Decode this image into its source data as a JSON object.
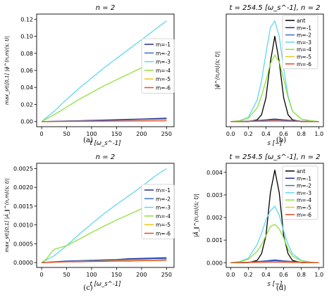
{
  "panels": [
    {
      "id": "a",
      "caption": "(a)",
      "title": "n = 2",
      "xlabel": "t [ω_s^-1]",
      "ylabel": "max_s∈[0,1] |φ̃^(n,m)(s; t)|",
      "chart_data": {
        "type": "line",
        "title": "n = 2",
        "xlabel": "t [ω_s^-1]",
        "ylabel": "max_s∈[0,1] |φ̃^(n,m)(s; t)|",
        "xlim": [
          -10,
          265
        ],
        "ylim": [
          -0.006,
          0.126
        ],
        "xticks": [
          0,
          50,
          100,
          150,
          200,
          250
        ],
        "xtick_labels": [
          "0",
          "50",
          "100",
          "150",
          "200",
          "250"
        ],
        "yticks": [
          0.0,
          0.02,
          0.04,
          0.06,
          0.08,
          0.1,
          0.12
        ],
        "ytick_labels": [
          "0.00",
          "0.02",
          "0.04",
          "0.06",
          "0.08",
          "0.10",
          "0.12"
        ],
        "grid": false,
        "legend": "right",
        "series": [
          {
            "name": "m=-1",
            "color": "#1f2d8c",
            "x": [
              0,
              25,
              50,
              75,
              100,
              125,
              150,
              175,
              200,
              225,
              250
            ],
            "y": [
              0,
              0.0003,
              0.0007,
              0.001,
              0.0014,
              0.0018,
              0.0022,
              0.0026,
              0.003,
              0.0035,
              0.004
            ]
          },
          {
            "name": "m=-2",
            "color": "#3a6fd6",
            "x": [
              0,
              25,
              50,
              75,
              100,
              125,
              150,
              175,
              200,
              225,
              250
            ],
            "y": [
              0,
              0.0002,
              0.0005,
              0.0008,
              0.001,
              0.0013,
              0.0016,
              0.002,
              0.0024,
              0.0027,
              0.003
            ]
          },
          {
            "name": "m=-3",
            "color": "#5fd7ef",
            "x": [
              0,
              25,
              50,
              75,
              100,
              125,
              150,
              175,
              200,
              225,
              250
            ],
            "y": [
              0,
              0.012,
              0.026,
              0.039,
              0.051,
              0.063,
              0.074,
              0.085,
              0.096,
              0.107,
              0.118
            ]
          },
          {
            "name": "m=-4",
            "color": "#8fe03c",
            "x": [
              0,
              25,
              50,
              75,
              100,
              125,
              150,
              175,
              200,
              225,
              250
            ],
            "y": [
              0,
              0.008,
              0.017,
              0.026,
              0.034,
              0.042,
              0.049,
              0.056,
              0.063,
              0.07,
              0.078
            ]
          },
          {
            "name": "m=-5",
            "color": "#f2c318",
            "x": [
              0,
              25,
              50,
              75,
              100,
              125,
              150,
              175,
              200,
              225,
              250
            ],
            "y": [
              0,
              0.0001,
              0.0002,
              0.0003,
              0.0004,
              0.0005,
              0.0006,
              0.0007,
              0.0008,
              0.0009,
              0.001
            ]
          },
          {
            "name": "m=-6",
            "color": "#e8482a",
            "x": [
              0,
              25,
              50,
              75,
              100,
              125,
              150,
              175,
              200,
              225,
              250
            ],
            "y": [
              0,
              0.0001,
              0.0002,
              0.0003,
              0.0004,
              0.0005,
              0.0006,
              0.0006,
              0.0007,
              0.0008,
              0.0009
            ]
          }
        ]
      }
    },
    {
      "id": "b",
      "caption": "(b)",
      "title": "t = 254.5 [ω_s^-1], n = 2",
      "xlabel": "s [−]",
      "ylabel": "|φ̃^(n,m)(s; t)|",
      "chart_data": {
        "type": "line",
        "title": "t = 254.5 [ω_s^-1], n = 2",
        "xlabel": "s [−]",
        "ylabel": "|φ̃^(n,m)(s; t)|",
        "xlim": [
          -0.05,
          1.05
        ],
        "ylim": [
          -0.006,
          0.126
        ],
        "xticks": [
          0.0,
          0.2,
          0.4,
          0.6,
          0.8,
          1.0
        ],
        "xtick_labels": [
          "0.0",
          "0.2",
          "0.4",
          "0.6",
          "0.8",
          "1.0"
        ],
        "yticks": [],
        "ytick_labels": [],
        "grid": false,
        "legend": "top-right",
        "series": [
          {
            "name": "ant",
            "color": "#000000",
            "x": [
              0,
              0.2,
              0.3,
              0.35,
              0.4,
              0.45,
              0.5,
              0.55,
              0.6,
              0.65,
              0.7,
              0.8,
              1.0
            ],
            "y": [
              0,
              0,
              0.002,
              0.008,
              0.028,
              0.07,
              0.1,
              0.07,
              0.028,
              0.008,
              0.002,
              0,
              0
            ]
          },
          {
            "name": "m=-1",
            "color": "#1f2d8c",
            "x": [
              0,
              0.2,
              0.4,
              0.5,
              0.6,
              0.8,
              1.0
            ],
            "y": [
              0,
              0.0005,
              0.002,
              0.003,
              0.002,
              0.0005,
              0
            ]
          },
          {
            "name": "m=-2",
            "color": "#3a6fd6",
            "x": [
              0,
              0.2,
              0.4,
              0.5,
              0.6,
              0.8,
              1.0
            ],
            "y": [
              0,
              0.0004,
              0.0015,
              0.002,
              0.0015,
              0.0004,
              0
            ]
          },
          {
            "name": "m=-3",
            "color": "#5fd7ef",
            "x": [
              0,
              0.1,
              0.2,
              0.3,
              0.35,
              0.4,
              0.45,
              0.5,
              0.55,
              0.6,
              0.65,
              0.7,
              0.8,
              0.9,
              1.0
            ],
            "y": [
              0,
              0.001,
              0.005,
              0.025,
              0.048,
              0.08,
              0.11,
              0.118,
              0.1,
              0.062,
              0.03,
              0.012,
              0.003,
              0.001,
              0
            ]
          },
          {
            "name": "m=-4",
            "color": "#8fe03c",
            "x": [
              0,
              0.1,
              0.2,
              0.3,
              0.35,
              0.4,
              0.45,
              0.5,
              0.55,
              0.6,
              0.65,
              0.7,
              0.8,
              0.9,
              1.0
            ],
            "y": [
              0,
              0.001,
              0.004,
              0.016,
              0.03,
              0.048,
              0.068,
              0.078,
              0.07,
              0.05,
              0.028,
              0.012,
              0.003,
              0.001,
              0
            ]
          },
          {
            "name": "m=-5",
            "color": "#f2c318",
            "x": [
              0,
              0.2,
              0.4,
              0.5,
              0.6,
              0.8,
              1.0
            ],
            "y": [
              0,
              0.0002,
              0.0006,
              0.0008,
              0.0006,
              0.0002,
              0
            ]
          },
          {
            "name": "m=-6",
            "color": "#e8482a",
            "x": [
              0,
              0.2,
              0.4,
              0.5,
              0.6,
              0.8,
              1.0
            ],
            "y": [
              0,
              0.0002,
              0.0005,
              0.0007,
              0.0005,
              0.0002,
              0
            ]
          }
        ]
      }
    },
    {
      "id": "c",
      "caption": "(c)",
      "title": "n = 2",
      "xlabel": "t [ω_s^-1]",
      "ylabel": "max_s∈[0,1] |Ã_∥^(n,m)(s; t)|",
      "chart_data": {
        "type": "line",
        "title": "n = 2",
        "xlabel": "t [ω_s^-1]",
        "ylabel": "max_s∈[0,1] |Ã_∥^(n,m)(s; t)|",
        "xlim": [
          -10,
          265
        ],
        "ylim": [
          -0.00013,
          0.00264
        ],
        "xticks": [
          0,
          50,
          100,
          150,
          200,
          250
        ],
        "xtick_labels": [
          "0",
          "50",
          "100",
          "150",
          "200",
          "250"
        ],
        "yticks": [
          0.0,
          0.0005,
          0.001,
          0.0015,
          0.002,
          0.0025
        ],
        "ytick_labels": [
          "0.0000",
          "0.0005",
          "0.0010",
          "0.0015",
          "0.0020",
          "0.0025"
        ],
        "grid": false,
        "legend": "right",
        "series": [
          {
            "name": "m=-1",
            "color": "#1f2d8c",
            "x": [
              0,
              25,
              50,
              75,
              100,
              125,
              150,
              175,
              200,
              225,
              250
            ],
            "y": [
              0,
              2e-05,
              4e-05,
              5e-05,
              6e-05,
              7e-05,
              8e-05,
              0.0001,
              0.00011,
              0.00012,
              0.00013
            ]
          },
          {
            "name": "m=-2",
            "color": "#3a6fd6",
            "x": [
              0,
              25,
              50,
              75,
              100,
              125,
              150,
              175,
              200,
              225,
              250
            ],
            "y": [
              0,
              1e-05,
              3e-05,
              4e-05,
              5e-05,
              6e-05,
              7e-05,
              8e-05,
              9e-05,
              0.0001,
              0.0001
            ]
          },
          {
            "name": "m=-3",
            "color": "#5fd7ef",
            "x": [
              0,
              25,
              50,
              75,
              100,
              125,
              150,
              175,
              200,
              225,
              250
            ],
            "y": [
              0,
              0.00018,
              0.00045,
              0.00075,
              0.00103,
              0.0013,
              0.00155,
              0.00178,
              0.00202,
              0.00228,
              0.0025
            ]
          },
          {
            "name": "m=-4",
            "color": "#8fe03c",
            "x": [
              0,
              10,
              20,
              25,
              50,
              75,
              100,
              125,
              150,
              175,
              200,
              225,
              250
            ],
            "y": [
              0,
              0.0001,
              0.00028,
              0.00035,
              0.00045,
              0.00062,
              0.0008,
              0.00097,
              0.00113,
              0.00128,
              0.00143,
              0.00158,
              0.00173
            ]
          },
          {
            "name": "m=-5",
            "color": "#f2c318",
            "x": [
              0,
              25,
              50,
              75,
              100,
              125,
              150,
              175,
              200,
              225,
              250
            ],
            "y": [
              0,
              1e-05,
              2e-05,
              3e-05,
              3e-05,
              4e-05,
              5e-05,
              5e-05,
              6e-05,
              6e-05,
              7e-05
            ]
          },
          {
            "name": "m=-6",
            "color": "#e8482a",
            "x": [
              0,
              25,
              50,
              75,
              100,
              125,
              150,
              175,
              200,
              225,
              250
            ],
            "y": [
              0,
              1e-05,
              2e-05,
              2e-05,
              3e-05,
              3e-05,
              4e-05,
              4e-05,
              5e-05,
              5e-05,
              6e-05
            ]
          }
        ]
      }
    },
    {
      "id": "d",
      "caption": "(d)",
      "title": "t = 254.5 [ω_s^-1], n = 2",
      "xlabel": "s [−]",
      "ylabel": "|Ã_∥^(n,m)(s; t)|",
      "chart_data": {
        "type": "line",
        "title": "t = 254.5 [ω_s^-1], n = 2",
        "xlabel": "s [−]",
        "ylabel": "|Ã_∥^(n,m)(s; t)|",
        "xlim": [
          -0.05,
          1.05
        ],
        "ylim": [
          -0.00021,
          0.0044
        ],
        "xticks": [
          0.0,
          0.2,
          0.4,
          0.6,
          0.8,
          1.0
        ],
        "xtick_labels": [
          "0.0",
          "0.2",
          "0.4",
          "0.6",
          "0.8",
          "1.0"
        ],
        "yticks": [
          0.0,
          0.001,
          0.002,
          0.003,
          0.004
        ],
        "ytick_labels": [
          "0.000",
          "0.001",
          "0.002",
          "0.003",
          "0.004"
        ],
        "grid": false,
        "legend": "top-right",
        "series": [
          {
            "name": "ant",
            "color": "#000000",
            "x": [
              0,
              0.2,
              0.3,
              0.35,
              0.4,
              0.45,
              0.5,
              0.55,
              0.6,
              0.65,
              0.7,
              0.8,
              1.0
            ],
            "y": [
              0,
              0,
              0.0001,
              0.0004,
              0.0012,
              0.0031,
              0.0041,
              0.0031,
              0.0012,
              0.0004,
              0.0001,
              0,
              0
            ]
          },
          {
            "name": "m=-1",
            "color": "#1f2d8c",
            "x": [
              0,
              0.2,
              0.4,
              0.5,
              0.6,
              0.8,
              1.0
            ],
            "y": [
              0,
              2e-05,
              8e-05,
              0.00012,
              8e-05,
              2e-05,
              0
            ]
          },
          {
            "name": "m=-2",
            "color": "#3a6fd6",
            "x": [
              0,
              0.2,
              0.4,
              0.5,
              0.6,
              0.8,
              1.0
            ],
            "y": [
              0,
              2e-05,
              6e-05,
              9e-05,
              6e-05,
              2e-05,
              0
            ]
          },
          {
            "name": "m=-3",
            "color": "#5fd7ef",
            "x": [
              0,
              0.1,
              0.2,
              0.3,
              0.35,
              0.4,
              0.45,
              0.5,
              0.55,
              0.6,
              0.65,
              0.7,
              0.8,
              0.9,
              1.0
            ],
            "y": [
              0,
              5e-05,
              0.0002,
              0.0008,
              0.0013,
              0.0019,
              0.0023,
              0.0025,
              0.0021,
              0.0014,
              0.0008,
              0.0004,
              0.0001,
              3e-05,
              0
            ]
          },
          {
            "name": "m=-4",
            "color": "#8fe03c",
            "x": [
              0,
              0.1,
              0.2,
              0.3,
              0.35,
              0.4,
              0.45,
              0.5,
              0.55,
              0.6,
              0.65,
              0.7,
              0.8,
              0.9,
              1.0
            ],
            "y": [
              0,
              4e-05,
              0.00015,
              0.0005,
              0.0008,
              0.0012,
              0.0016,
              0.0017,
              0.0015,
              0.0011,
              0.0006,
              0.0003,
              8e-05,
              2e-05,
              0
            ]
          },
          {
            "name": "m=-5",
            "color": "#f2c318",
            "x": [
              0,
              0.2,
              0.4,
              0.5,
              0.6,
              0.8,
              1.0
            ],
            "y": [
              0,
              1e-05,
              3e-05,
              4e-05,
              3e-05,
              1e-05,
              0
            ]
          },
          {
            "name": "m=-6",
            "color": "#e8482a",
            "x": [
              0,
              0.2,
              0.4,
              0.5,
              0.6,
              0.8,
              1.0
            ],
            "y": [
              0,
              1e-05,
              2e-05,
              3e-05,
              2e-05,
              1e-05,
              0
            ]
          }
        ]
      }
    }
  ]
}
